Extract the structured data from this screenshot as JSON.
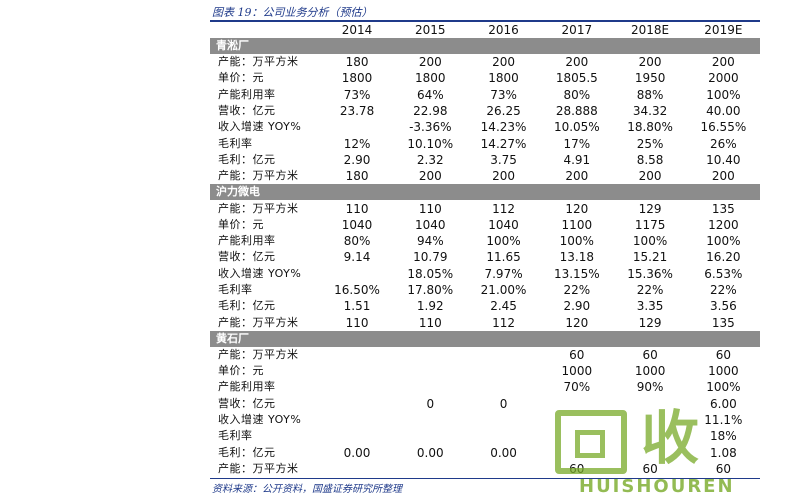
{
  "caption": "图表 19：公司业务分析（预估）",
  "source": "资料来源：公开资料，国盛证券研究所整理",
  "years": [
    "2014",
    "2015",
    "2016",
    "2017",
    "2018E",
    "2019E"
  ],
  "sections": [
    {
      "name": "青淞厂",
      "rows": [
        {
          "label": "产能：万平方米",
          "values": [
            "180",
            "200",
            "200",
            "200",
            "200",
            "200"
          ]
        },
        {
          "label": "单价：元",
          "values": [
            "1800",
            "1800",
            "1800",
            "1805.5",
            "1950",
            "2000"
          ]
        },
        {
          "label": "产能利用率",
          "values": [
            "73%",
            "64%",
            "73%",
            "80%",
            "88%",
            "100%"
          ]
        },
        {
          "label": "营收：亿元",
          "values": [
            "23.78",
            "22.98",
            "26.25",
            "28.888",
            "34.32",
            "40.00"
          ]
        },
        {
          "label": "收入增速 YOY%",
          "values": [
            "",
            "-3.36%",
            "14.23%",
            "10.05%",
            "18.80%",
            "16.55%"
          ]
        },
        {
          "label": "毛利率",
          "values": [
            "12%",
            "10.10%",
            "14.27%",
            "17%",
            "25%",
            "26%"
          ]
        },
        {
          "label": "毛利：亿元",
          "values": [
            "2.90",
            "2.32",
            "3.75",
            "4.91",
            "8.58",
            "10.40"
          ]
        },
        {
          "label": "产能：万平方米",
          "values": [
            "180",
            "200",
            "200",
            "200",
            "200",
            "200"
          ]
        }
      ]
    },
    {
      "name": "沪力微电",
      "rows": [
        {
          "label": "产能：万平方米",
          "values": [
            "110",
            "110",
            "112",
            "120",
            "129",
            "135"
          ]
        },
        {
          "label": "单价：元",
          "values": [
            "1040",
            "1040",
            "1040",
            "1100",
            "1175",
            "1200"
          ]
        },
        {
          "label": "产能利用率",
          "values": [
            "80%",
            "94%",
            "100%",
            "100%",
            "100%",
            "100%"
          ]
        },
        {
          "label": "营收：亿元",
          "values": [
            "9.14",
            "10.79",
            "11.65",
            "13.18",
            "15.21",
            "16.20"
          ]
        },
        {
          "label": "收入增速 YOY%",
          "values": [
            "",
            "18.05%",
            "7.97%",
            "13.15%",
            "15.36%",
            "6.53%"
          ]
        },
        {
          "label": "毛利率",
          "values": [
            "16.50%",
            "17.80%",
            "21.00%",
            "22%",
            "22%",
            "22%"
          ]
        },
        {
          "label": "毛利：亿元",
          "values": [
            "1.51",
            "1.92",
            "2.45",
            "2.90",
            "3.35",
            "3.56"
          ]
        },
        {
          "label": "产能：万平方米",
          "values": [
            "110",
            "110",
            "112",
            "120",
            "129",
            "135"
          ]
        }
      ]
    },
    {
      "name": "黄石厂",
      "rows": [
        {
          "label": "产能：万平方米",
          "values": [
            "",
            "",
            "",
            "60",
            "60",
            "60"
          ]
        },
        {
          "label": "单价：元",
          "values": [
            "",
            "",
            "",
            "1000",
            "1000",
            "1000"
          ]
        },
        {
          "label": "产能利用率",
          "values": [
            "",
            "",
            "",
            "70%",
            "90%",
            "100%"
          ]
        },
        {
          "label": "营收：亿元",
          "values": [
            "",
            "0",
            "0",
            "",
            "",
            "6.00"
          ]
        },
        {
          "label": "收入增速 YOY%",
          "values": [
            "",
            "",
            "",
            "",
            "",
            "11.1%"
          ]
        },
        {
          "label": "毛利率",
          "values": [
            "",
            "",
            "",
            "",
            "",
            "18%"
          ]
        },
        {
          "label": "毛利：亿元",
          "values": [
            "0.00",
            "0.00",
            "0.00",
            "",
            "",
            "1.08"
          ]
        },
        {
          "label": "产能：万平方米",
          "values": [
            "",
            "",
            "",
            "60",
            "60",
            "60"
          ]
        }
      ]
    }
  ],
  "watermark": {
    "char": "收",
    "text": "HUISHOUREN",
    "color": "#78aa28"
  }
}
